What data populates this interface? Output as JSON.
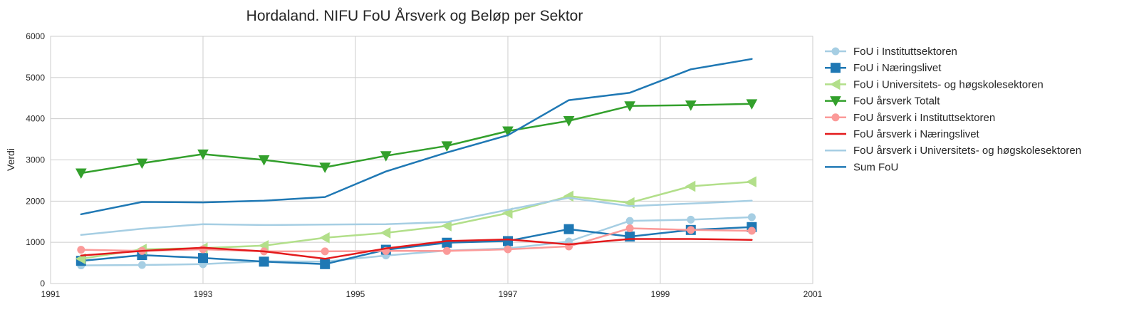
{
  "chart_data": {
    "type": "line",
    "title": "Hordaland. NIFU FoU Årsverk og Beløp per Sektor",
    "xlabel": "",
    "ylabel": "Verdi",
    "xlim": [
      1991,
      2001
    ],
    "ylim": [
      0,
      6000
    ],
    "xticks": [
      "1991",
      "1993",
      "1995",
      "1997",
      "1999",
      "2001"
    ],
    "yticks": [
      "0",
      "1000",
      "2000",
      "3000",
      "4000",
      "5000",
      "6000"
    ],
    "grid": true,
    "legend_position": "outside-right",
    "x": [
      1991.4,
      1992.2,
      1993.0,
      1993.8,
      1994.6,
      1995.4,
      1996.2,
      1997.0,
      1997.8,
      1998.6,
      1999.4,
      2000.2
    ],
    "series": [
      {
        "name": "FoU i Instituttsektoren",
        "color": "#a6cee3",
        "marker": "circle",
        "values": [
          440,
          450,
          470,
          540,
          530,
          680,
          800,
          850,
          1020,
          1520,
          1550,
          1610
        ]
      },
      {
        "name": "FoU i Næringslivet",
        "color": "#1f78b4",
        "marker": "square",
        "values": [
          550,
          690,
          620,
          530,
          470,
          820,
          990,
          1030,
          1320,
          1140,
          1300,
          1370
        ]
      },
      {
        "name": "FoU i Universitets- og høgskolesektoren",
        "color": "#b2df8a",
        "marker": "triangle-left",
        "values": [
          600,
          830,
          860,
          920,
          1110,
          1230,
          1400,
          1710,
          2120,
          1960,
          2360,
          2470
        ]
      },
      {
        "name": "FoU årsverk Totalt",
        "color": "#33a02c",
        "marker": "triangle-down",
        "values": [
          2680,
          2920,
          3140,
          3000,
          2820,
          3100,
          3340,
          3700,
          3950,
          4310,
          4330,
          4360
        ]
      },
      {
        "name": "FoU årsverk i Instituttsektoren",
        "color": "#fb9a99",
        "marker": "circle",
        "values": [
          820,
          790,
          830,
          780,
          780,
          790,
          790,
          830,
          900,
          1340,
          1300,
          1280
        ]
      },
      {
        "name": "FoU årsverk i Næringslivet",
        "color": "#e31a1c",
        "marker": "none",
        "values": [
          680,
          790,
          870,
          780,
          600,
          850,
          1030,
          1070,
          950,
          1080,
          1080,
          1060
        ]
      },
      {
        "name": "FoU årsverk i Universitets- og høgskolesektoren",
        "color": "#a6cee3",
        "marker": "none",
        "values": [
          1180,
          1330,
          1440,
          1420,
          1430,
          1440,
          1490,
          1790,
          2080,
          1880,
          1940,
          2010
        ]
      },
      {
        "name": "Sum FoU",
        "color": "#1f78b4",
        "marker": "none",
        "values": [
          1680,
          1980,
          1970,
          2010,
          2100,
          2720,
          3180,
          3600,
          4450,
          4630,
          5200,
          5450
        ]
      }
    ]
  }
}
